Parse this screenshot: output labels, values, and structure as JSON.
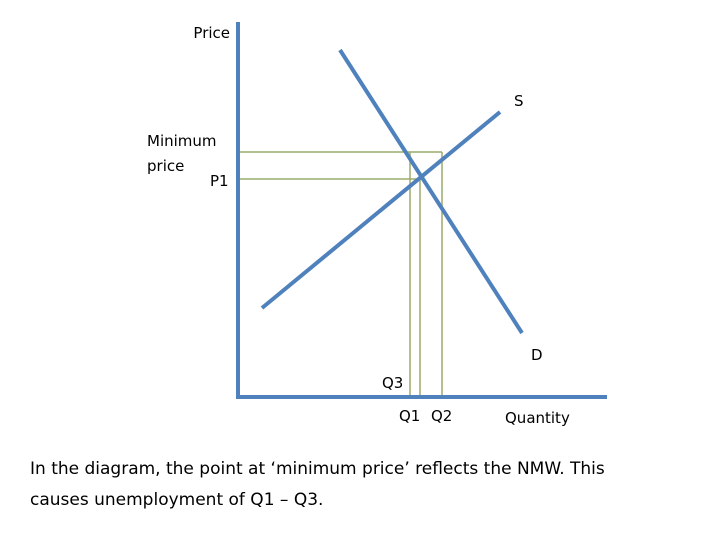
{
  "diagram": {
    "axis_labels": {
      "y": "Price",
      "x": "Quantity"
    },
    "price_labels": {
      "minimum": [
        "Minimum",
        "price"
      ],
      "p1": "P1"
    },
    "curve_labels": {
      "supply": "S",
      "demand": "D"
    },
    "quantity_labels": {
      "q3": "Q3",
      "q1": "Q1",
      "q2": "Q2"
    }
  },
  "caption": {
    "lines": [
      "In the diagram, the point at ‘minimum price’ reflects the NMW. This",
      "causes unemployment of Q1 – Q3."
    ]
  }
}
